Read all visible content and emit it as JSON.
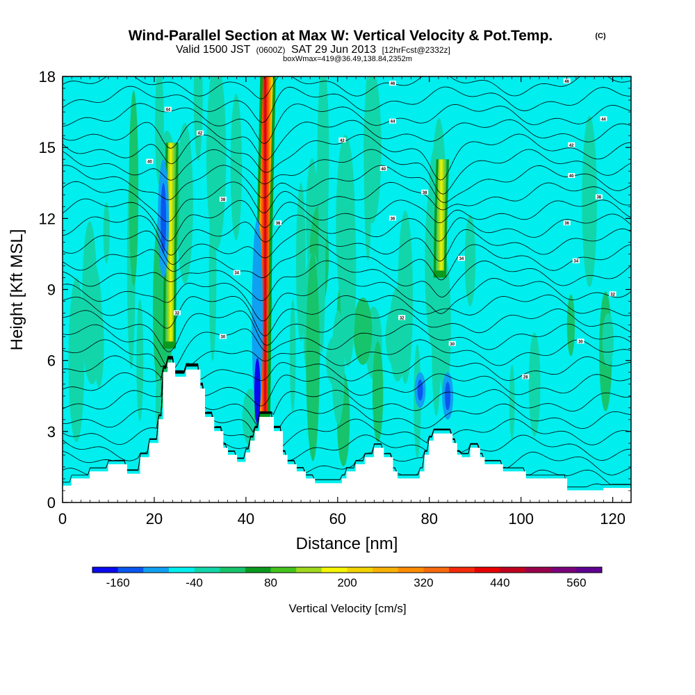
{
  "title": {
    "main": "Wind-Parallel Section at Max W: Vertical Velocity & Pot.Temp.",
    "copyright": "(C)",
    "valid_prefix": "Valid 1500 JST",
    "valid_utc": "(0600Z)",
    "valid_date": "SAT 29 Jun 2013",
    "forecast": "[12hrFcst@2332z]",
    "box": "boxWmax=419@36.49,138.84,2352m"
  },
  "chart_data": {
    "type": "heatmap",
    "xlabel": "Distance [nm]",
    "ylabel": "Height [Kft MSL]",
    "xlim": [
      0,
      124
    ],
    "ylim": [
      0,
      18
    ],
    "xticks": [
      "0",
      "20",
      "40",
      "60",
      "80",
      "100",
      "120"
    ],
    "yticks": [
      "0",
      "3",
      "6",
      "9",
      "12",
      "15",
      "18"
    ],
    "background_value_range": [
      -40,
      80
    ],
    "updrafts": [
      {
        "x_center": 23.5,
        "y_bottom": 6.5,
        "y_top": 15.2,
        "peak_value": 200,
        "peak_height": 11
      },
      {
        "x_center": 44.0,
        "y_bottom": 3.5,
        "y_top": 18.0,
        "peak_value": 500,
        "peak_height": 11.5
      },
      {
        "x_center": 82.5,
        "y_bottom": 9.5,
        "y_top": 14.5,
        "peak_value": 140,
        "peak_height": 12
      }
    ],
    "downdrafts": [
      {
        "x_center": 22.0,
        "y_bottom": 9.5,
        "y_top": 14.5,
        "min_value": -80
      },
      {
        "x_center": 42.5,
        "y_bottom": 3.5,
        "y_top": 12.0,
        "min_value": -160
      },
      {
        "x_center": 78.0,
        "y_bottom": 4.0,
        "y_top": 5.5,
        "min_value": -80
      },
      {
        "x_center": 84.0,
        "y_bottom": 3.5,
        "y_top": 5.5,
        "min_value": -80
      }
    ],
    "terrain": [
      [
        0,
        0.7
      ],
      [
        2,
        0.7
      ],
      [
        2,
        1.0
      ],
      [
        6,
        1.0
      ],
      [
        6,
        1.3
      ],
      [
        10,
        1.3
      ],
      [
        10,
        1.6
      ],
      [
        14,
        1.6
      ],
      [
        14,
        1.2
      ],
      [
        17,
        1.2
      ],
      [
        17,
        1.9
      ],
      [
        19,
        1.9
      ],
      [
        19,
        2.5
      ],
      [
        21,
        2.5
      ],
      [
        21,
        3.5
      ],
      [
        22,
        3.5
      ],
      [
        22,
        5.5
      ],
      [
        23,
        5.5
      ],
      [
        23,
        5.9
      ],
      [
        24.5,
        5.9
      ],
      [
        24.5,
        5.3
      ],
      [
        27,
        5.3
      ],
      [
        27,
        5.6
      ],
      [
        30,
        5.6
      ],
      [
        30,
        4.8
      ],
      [
        31,
        4.8
      ],
      [
        31,
        3.6
      ],
      [
        33,
        3.6
      ],
      [
        33,
        3.0
      ],
      [
        35,
        3.0
      ],
      [
        35,
        2.3
      ],
      [
        36,
        2.3
      ],
      [
        36,
        2.0
      ],
      [
        38,
        2.0
      ],
      [
        38,
        1.7
      ],
      [
        40,
        1.7
      ],
      [
        40,
        2.1
      ],
      [
        41,
        2.1
      ],
      [
        41,
        2.6
      ],
      [
        42,
        2.6
      ],
      [
        42,
        3.0
      ],
      [
        43,
        3.0
      ],
      [
        43,
        3.6
      ],
      [
        46,
        3.6
      ],
      [
        46,
        3.0
      ],
      [
        48,
        3.0
      ],
      [
        48,
        2.0
      ],
      [
        49,
        2.0
      ],
      [
        49,
        1.6
      ],
      [
        51,
        1.6
      ],
      [
        51,
        1.3
      ],
      [
        53,
        1.3
      ],
      [
        53,
        1.0
      ],
      [
        55,
        1.0
      ],
      [
        55,
        0.8
      ],
      [
        61,
        0.8
      ],
      [
        61,
        1.0
      ],
      [
        62,
        1.0
      ],
      [
        62,
        1.3
      ],
      [
        64,
        1.3
      ],
      [
        64,
        1.6
      ],
      [
        66,
        1.6
      ],
      [
        66,
        1.9
      ],
      [
        68,
        1.9
      ],
      [
        68,
        2.3
      ],
      [
        70,
        2.3
      ],
      [
        70,
        1.9
      ],
      [
        72,
        1.9
      ],
      [
        72,
        1.3
      ],
      [
        73,
        1.3
      ],
      [
        73,
        1.0
      ],
      [
        78,
        1.0
      ],
      [
        78,
        1.3
      ],
      [
        79,
        1.3
      ],
      [
        79,
        2.0
      ],
      [
        80,
        2.0
      ],
      [
        80,
        2.6
      ],
      [
        81,
        2.6
      ],
      [
        81,
        2.9
      ],
      [
        85,
        2.9
      ],
      [
        85,
        2.5
      ],
      [
        86,
        2.5
      ],
      [
        86,
        2.0
      ],
      [
        87,
        2.0
      ],
      [
        87,
        1.9
      ],
      [
        89,
        1.9
      ],
      [
        89,
        2.3
      ],
      [
        91,
        2.3
      ],
      [
        91,
        1.9
      ],
      [
        92,
        1.9
      ],
      [
        92,
        1.6
      ],
      [
        96,
        1.6
      ],
      [
        96,
        1.3
      ],
      [
        101,
        1.3
      ],
      [
        101,
        1.0
      ],
      [
        110,
        1.0
      ],
      [
        110,
        0.5
      ],
      [
        118,
        0.5
      ],
      [
        118,
        0.6
      ],
      [
        124,
        0.6
      ]
    ],
    "isentropes_K": [
      296,
      298,
      300,
      302,
      304,
      306,
      308,
      310,
      312,
      314,
      316,
      318,
      320,
      322,
      324,
      326,
      328,
      330,
      332,
      334,
      336,
      338,
      340,
      342,
      344,
      346,
      348
    ],
    "isentrope_labels": [
      {
        "text": "46",
        "x": 72,
        "y": 17.7
      },
      {
        "text": "46",
        "x": 110,
        "y": 17.8
      },
      {
        "text": "44",
        "x": 23,
        "y": 16.6
      },
      {
        "text": "44",
        "x": 72,
        "y": 16.1
      },
      {
        "text": "44",
        "x": 118,
        "y": 16.2
      },
      {
        "text": "42",
        "x": 30,
        "y": 15.6
      },
      {
        "text": "42",
        "x": 61,
        "y": 15.3
      },
      {
        "text": "42",
        "x": 111,
        "y": 15.1
      },
      {
        "text": "40",
        "x": 19,
        "y": 14.4
      },
      {
        "text": "40",
        "x": 70,
        "y": 14.1
      },
      {
        "text": "40",
        "x": 111,
        "y": 13.8
      },
      {
        "text": "38",
        "x": 35,
        "y": 12.8
      },
      {
        "text": "38",
        "x": 79,
        "y": 13.1
      },
      {
        "text": "38",
        "x": 117,
        "y": 12.9
      },
      {
        "text": "36",
        "x": 47,
        "y": 11.8
      },
      {
        "text": "36",
        "x": 72,
        "y": 12.0
      },
      {
        "text": "36",
        "x": 110,
        "y": 11.8
      },
      {
        "text": "34",
        "x": 38,
        "y": 9.7
      },
      {
        "text": "34",
        "x": 87,
        "y": 10.3
      },
      {
        "text": "34",
        "x": 112,
        "y": 10.2
      },
      {
        "text": "32",
        "x": 25,
        "y": 8.0
      },
      {
        "text": "32",
        "x": 74,
        "y": 7.8
      },
      {
        "text": "32",
        "x": 120,
        "y": 8.8
      },
      {
        "text": "30",
        "x": 35,
        "y": 7.0
      },
      {
        "text": "30",
        "x": 85,
        "y": 6.7
      },
      {
        "text": "30",
        "x": 113,
        "y": 6.8
      },
      {
        "text": "28",
        "x": 101,
        "y": 5.3
      }
    ],
    "colorbar": {
      "label": "Vertical Velocity [cm/s]",
      "levels": [
        -200,
        -160,
        -120,
        -80,
        -40,
        0,
        40,
        80,
        120,
        160,
        200,
        240,
        280,
        320,
        360,
        400,
        440,
        480,
        520,
        560,
        600
      ],
      "tick_labels": [
        "-160",
        "-40",
        "80",
        "200",
        "320",
        "440",
        "560"
      ],
      "colors": [
        "#0a0af0",
        "#0a57f0",
        "#10a0f2",
        "#00eeee",
        "#12d6aa",
        "#17c46c",
        "#0a9a1e",
        "#44c31c",
        "#9fd81d",
        "#f5f500",
        "#f2d300",
        "#f7b106",
        "#ff8c00",
        "#f76b0d",
        "#f52a0a",
        "#e80000",
        "#c00020",
        "#99004c",
        "#7a007a",
        "#5e0090"
      ]
    }
  }
}
